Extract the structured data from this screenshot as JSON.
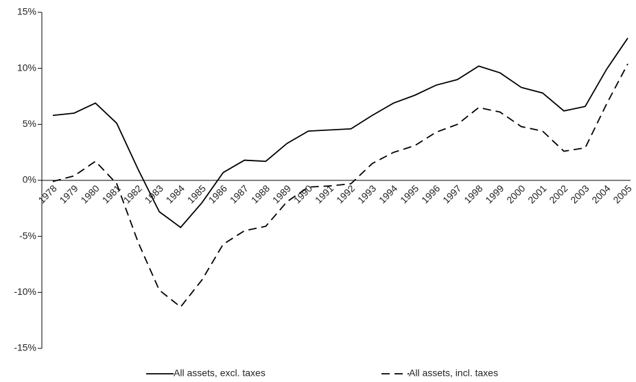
{
  "chart_data": {
    "type": "line",
    "categories": [
      "1978",
      "1979",
      "1980",
      "1981",
      "1982",
      "1983",
      "1984",
      "1985",
      "1986",
      "1987",
      "1988",
      "1989",
      "1990",
      "1991",
      "1992",
      "1993",
      "1994",
      "1995",
      "1996",
      "1997",
      "1998",
      "1999",
      "2000",
      "2001",
      "2002",
      "2003",
      "2004",
      "2005"
    ],
    "series": [
      {
        "name": "All assets, excl. taxes",
        "color": "#000000",
        "dash": "solid",
        "values": [
          5.8,
          6.0,
          6.9,
          5.1,
          1.0,
          -2.8,
          -4.2,
          -2.0,
          0.7,
          1.8,
          1.7,
          3.3,
          4.4,
          4.5,
          4.6,
          5.8,
          6.9,
          7.6,
          8.5,
          9.0,
          10.2,
          9.6,
          8.3,
          7.8,
          6.2,
          6.6,
          9.9,
          12.7
        ]
      },
      {
        "name": "All assets, incl. taxes",
        "color": "#000000",
        "dash": "dashed",
        "values": [
          -0.1,
          0.4,
          1.7,
          -0.3,
          -5.5,
          -9.8,
          -11.3,
          -8.9,
          -5.7,
          -4.5,
          -4.1,
          -1.9,
          -0.6,
          -0.5,
          -0.3,
          1.5,
          2.5,
          3.1,
          4.3,
          5.0,
          6.5,
          6.1,
          4.8,
          4.4,
          2.6,
          2.9,
          6.8,
          10.4
        ]
      }
    ],
    "ylim": [
      -15,
      15
    ],
    "yticks": [
      {
        "value": -15,
        "label": "-15%"
      },
      {
        "value": -10,
        "label": "-10%"
      },
      {
        "value": -5,
        "label": "-5%"
      },
      {
        "value": 0,
        "label": "0%"
      },
      {
        "value": 5,
        "label": "5%"
      },
      {
        "value": 10,
        "label": "10%"
      },
      {
        "value": 15,
        "label": "15%"
      }
    ],
    "grid": false,
    "legend": "bottom"
  }
}
